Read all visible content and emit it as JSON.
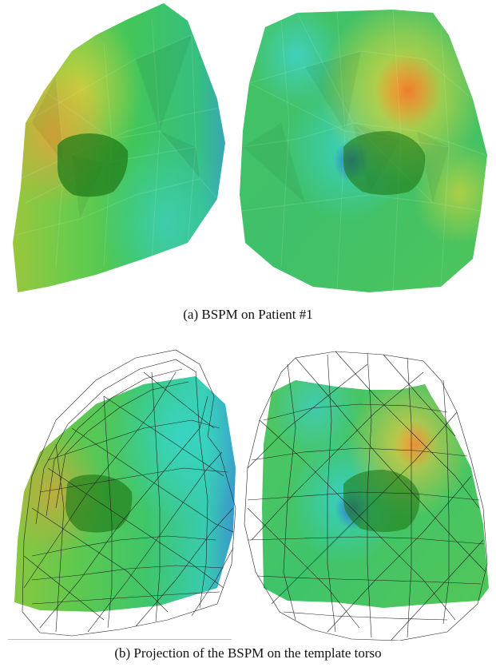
{
  "figure": {
    "caption_a": "(a) BSPM on Patient #1",
    "caption_b": "(b) Projection of the BSPM on the template torso"
  },
  "colors": {
    "base_green": "#3fc257",
    "cyan": "#38d6c0",
    "blue": "#3a8fd6",
    "yellow": "#e3d83a",
    "orange": "#ef8a2e",
    "heart_green": "#1f7a17",
    "wire": "#222222"
  }
}
